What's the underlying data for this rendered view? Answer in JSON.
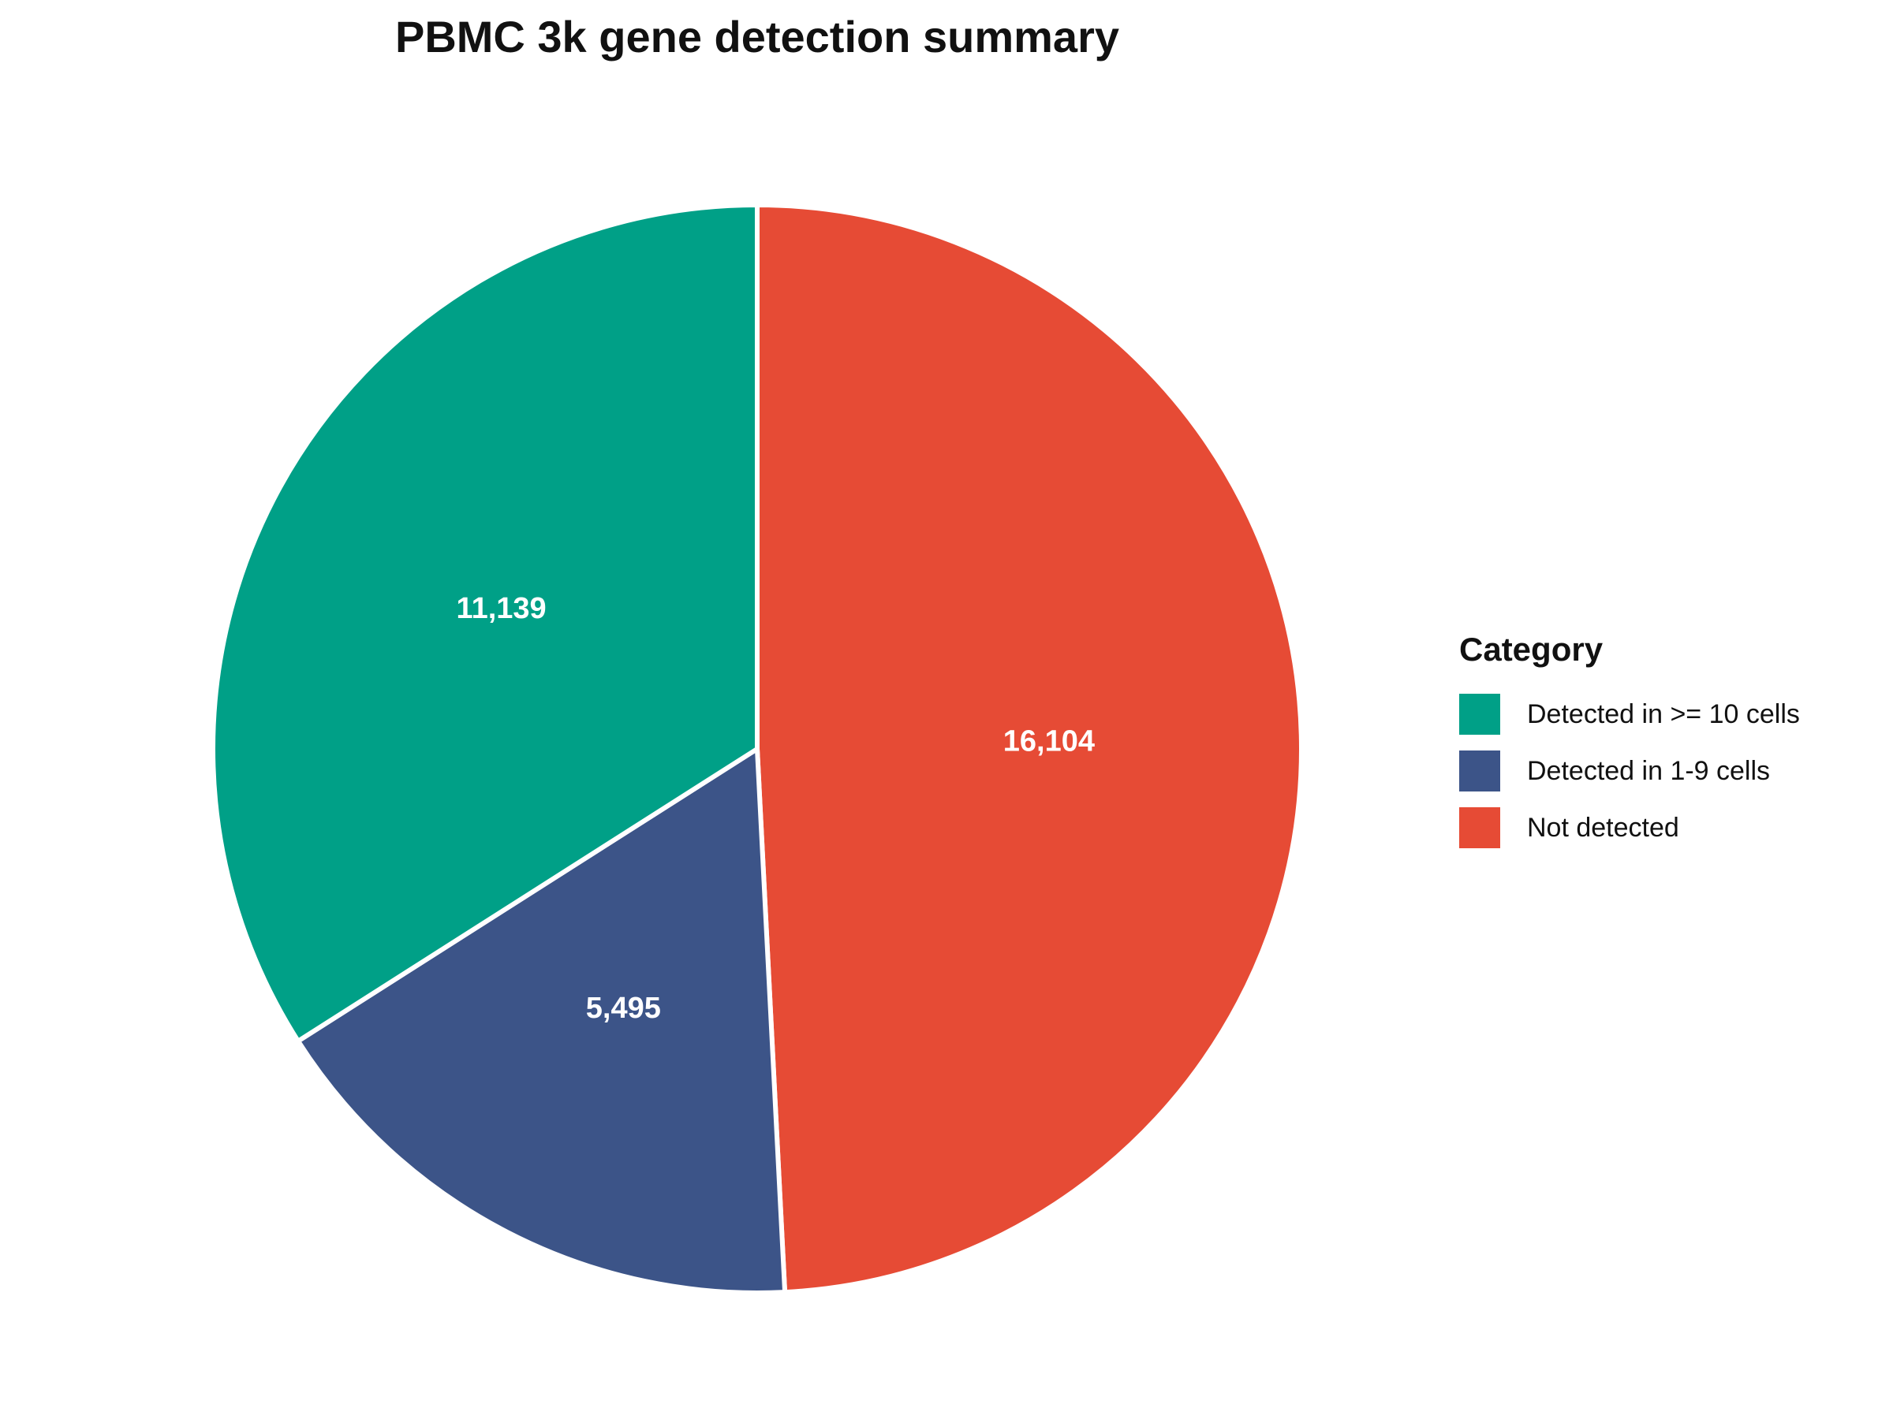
{
  "chart_data": {
    "type": "pie",
    "title": "PBMC 3k gene detection summary",
    "legend_title": "Category",
    "legend_position": "right",
    "slices": [
      {
        "name": "Not detected",
        "value": 16104,
        "label": "16,104",
        "color": "#e64b35"
      },
      {
        "name": "Detected in 1-9 cells",
        "value": 5495,
        "label": "5,495",
        "color": "#3c5488"
      },
      {
        "name": "Detected in >= 10 cells",
        "value": 11139,
        "label": "11,139",
        "color": "#00a087"
      }
    ],
    "legend_items": [
      {
        "label": "Detected in >= 10 cells",
        "color": "#00a087"
      },
      {
        "label": "Detected in 1-9 cells",
        "color": "#3c5488"
      },
      {
        "label": "Not detected",
        "color": "#e64b35"
      }
    ]
  }
}
